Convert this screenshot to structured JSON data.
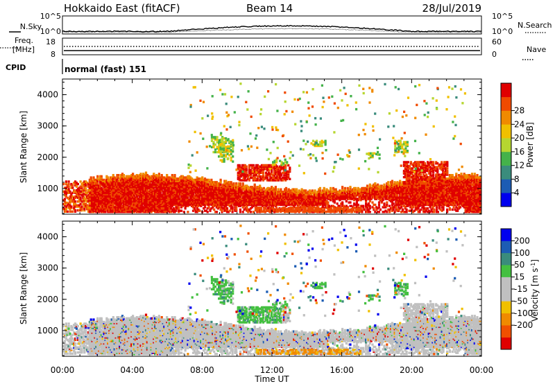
{
  "header": {
    "radar": "Hokkaido East (fitACF)",
    "beam": "Beam 14",
    "date": "28/Jul/2019"
  },
  "top_panels": {
    "nsky_label": "N.Sky",
    "nsearch_label": "N.Search",
    "nsky_ticks": [
      "10^5",
      "10^0"
    ],
    "nsearch_ticks": [
      "10^5",
      "10^0"
    ],
    "freq_label_line1": "Freq.",
    "freq_label_line2": "[MHz]",
    "freq_ticks": [
      "18",
      "8"
    ],
    "nave_label": "Nave",
    "nave_ticks": [
      "60",
      "0"
    ],
    "cpid_label": "CPID",
    "cpid_text": "normal (fast) 151"
  },
  "colors": {
    "power_scale": [
      "#0000ee",
      "#1c5cb4",
      "#3a8c7c",
      "#44b24a",
      "#b6d630",
      "#f0c000",
      "#f08a00",
      "#f04a00",
      "#e00000"
    ],
    "velocity_scale": [
      "#e00000",
      "#f05000",
      "#f08a00",
      "#f0c000",
      "#c0c0c0",
      "#c0c0c0",
      "#44c040",
      "#3a8c7c",
      "#1c5cb4",
      "#0000ee"
    ]
  },
  "chart_data": [
    {
      "type": "heatmap",
      "panel": "power",
      "ylabel": "Slant Range [km]",
      "ylim": [
        180,
        4500
      ],
      "yticks": [
        "1000",
        "2000",
        "3000",
        "4000"
      ],
      "xlim_hours": [
        0,
        24
      ],
      "colorbar": {
        "label": "Power [dB]",
        "range": [
          0,
          32
        ],
        "ticks": [
          "4",
          "8",
          "12",
          "16",
          "20",
          "24",
          "28"
        ]
      },
      "dominant_echo_bands": [
        {
          "start_ut": "01:30",
          "end_ut": "23:59",
          "range_km": [
            300,
            1400
          ],
          "power_db": 28
        },
        {
          "start_ut": "10:00",
          "end_ut": "13:00",
          "range_km": [
            1400,
            1800
          ],
          "power_db": 26
        },
        {
          "start_ut": "19:30",
          "end_ut": "22:00",
          "range_km": [
            1200,
            1900
          ],
          "power_db": 26
        }
      ]
    },
    {
      "type": "heatmap",
      "panel": "velocity",
      "ylabel": "Slant Range [km]",
      "ylim": [
        180,
        4500
      ],
      "yticks": [
        "1000",
        "2000",
        "3000",
        "4000"
      ],
      "xlim_hours": [
        0,
        24
      ],
      "xticks": [
        "00:00",
        "04:00",
        "08:00",
        "12:00",
        "16:00",
        "20:00",
        "00:00"
      ],
      "xlabel": "Time UT",
      "colorbar": {
        "label": "Velocity [m s",
        "label_exponent": "-1",
        "range": [
          -250,
          250
        ],
        "ticks": [
          "200",
          "100",
          "50",
          "15",
          "-15",
          "-50",
          "-100",
          "-200"
        ]
      },
      "dominant_echo_bands": [
        {
          "start_ut": "00:00",
          "end_ut": "23:59",
          "range_km": [
            300,
            1400
          ],
          "velocity_ms": 0
        },
        {
          "start_ut": "10:00",
          "end_ut": "12:30",
          "range_km": [
            1400,
            1700
          ],
          "velocity_ms": 60
        },
        {
          "start_ut": "11:00",
          "end_ut": "17:00",
          "range_km": [
            300,
            450
          ],
          "velocity_ms": -60
        }
      ]
    }
  ]
}
